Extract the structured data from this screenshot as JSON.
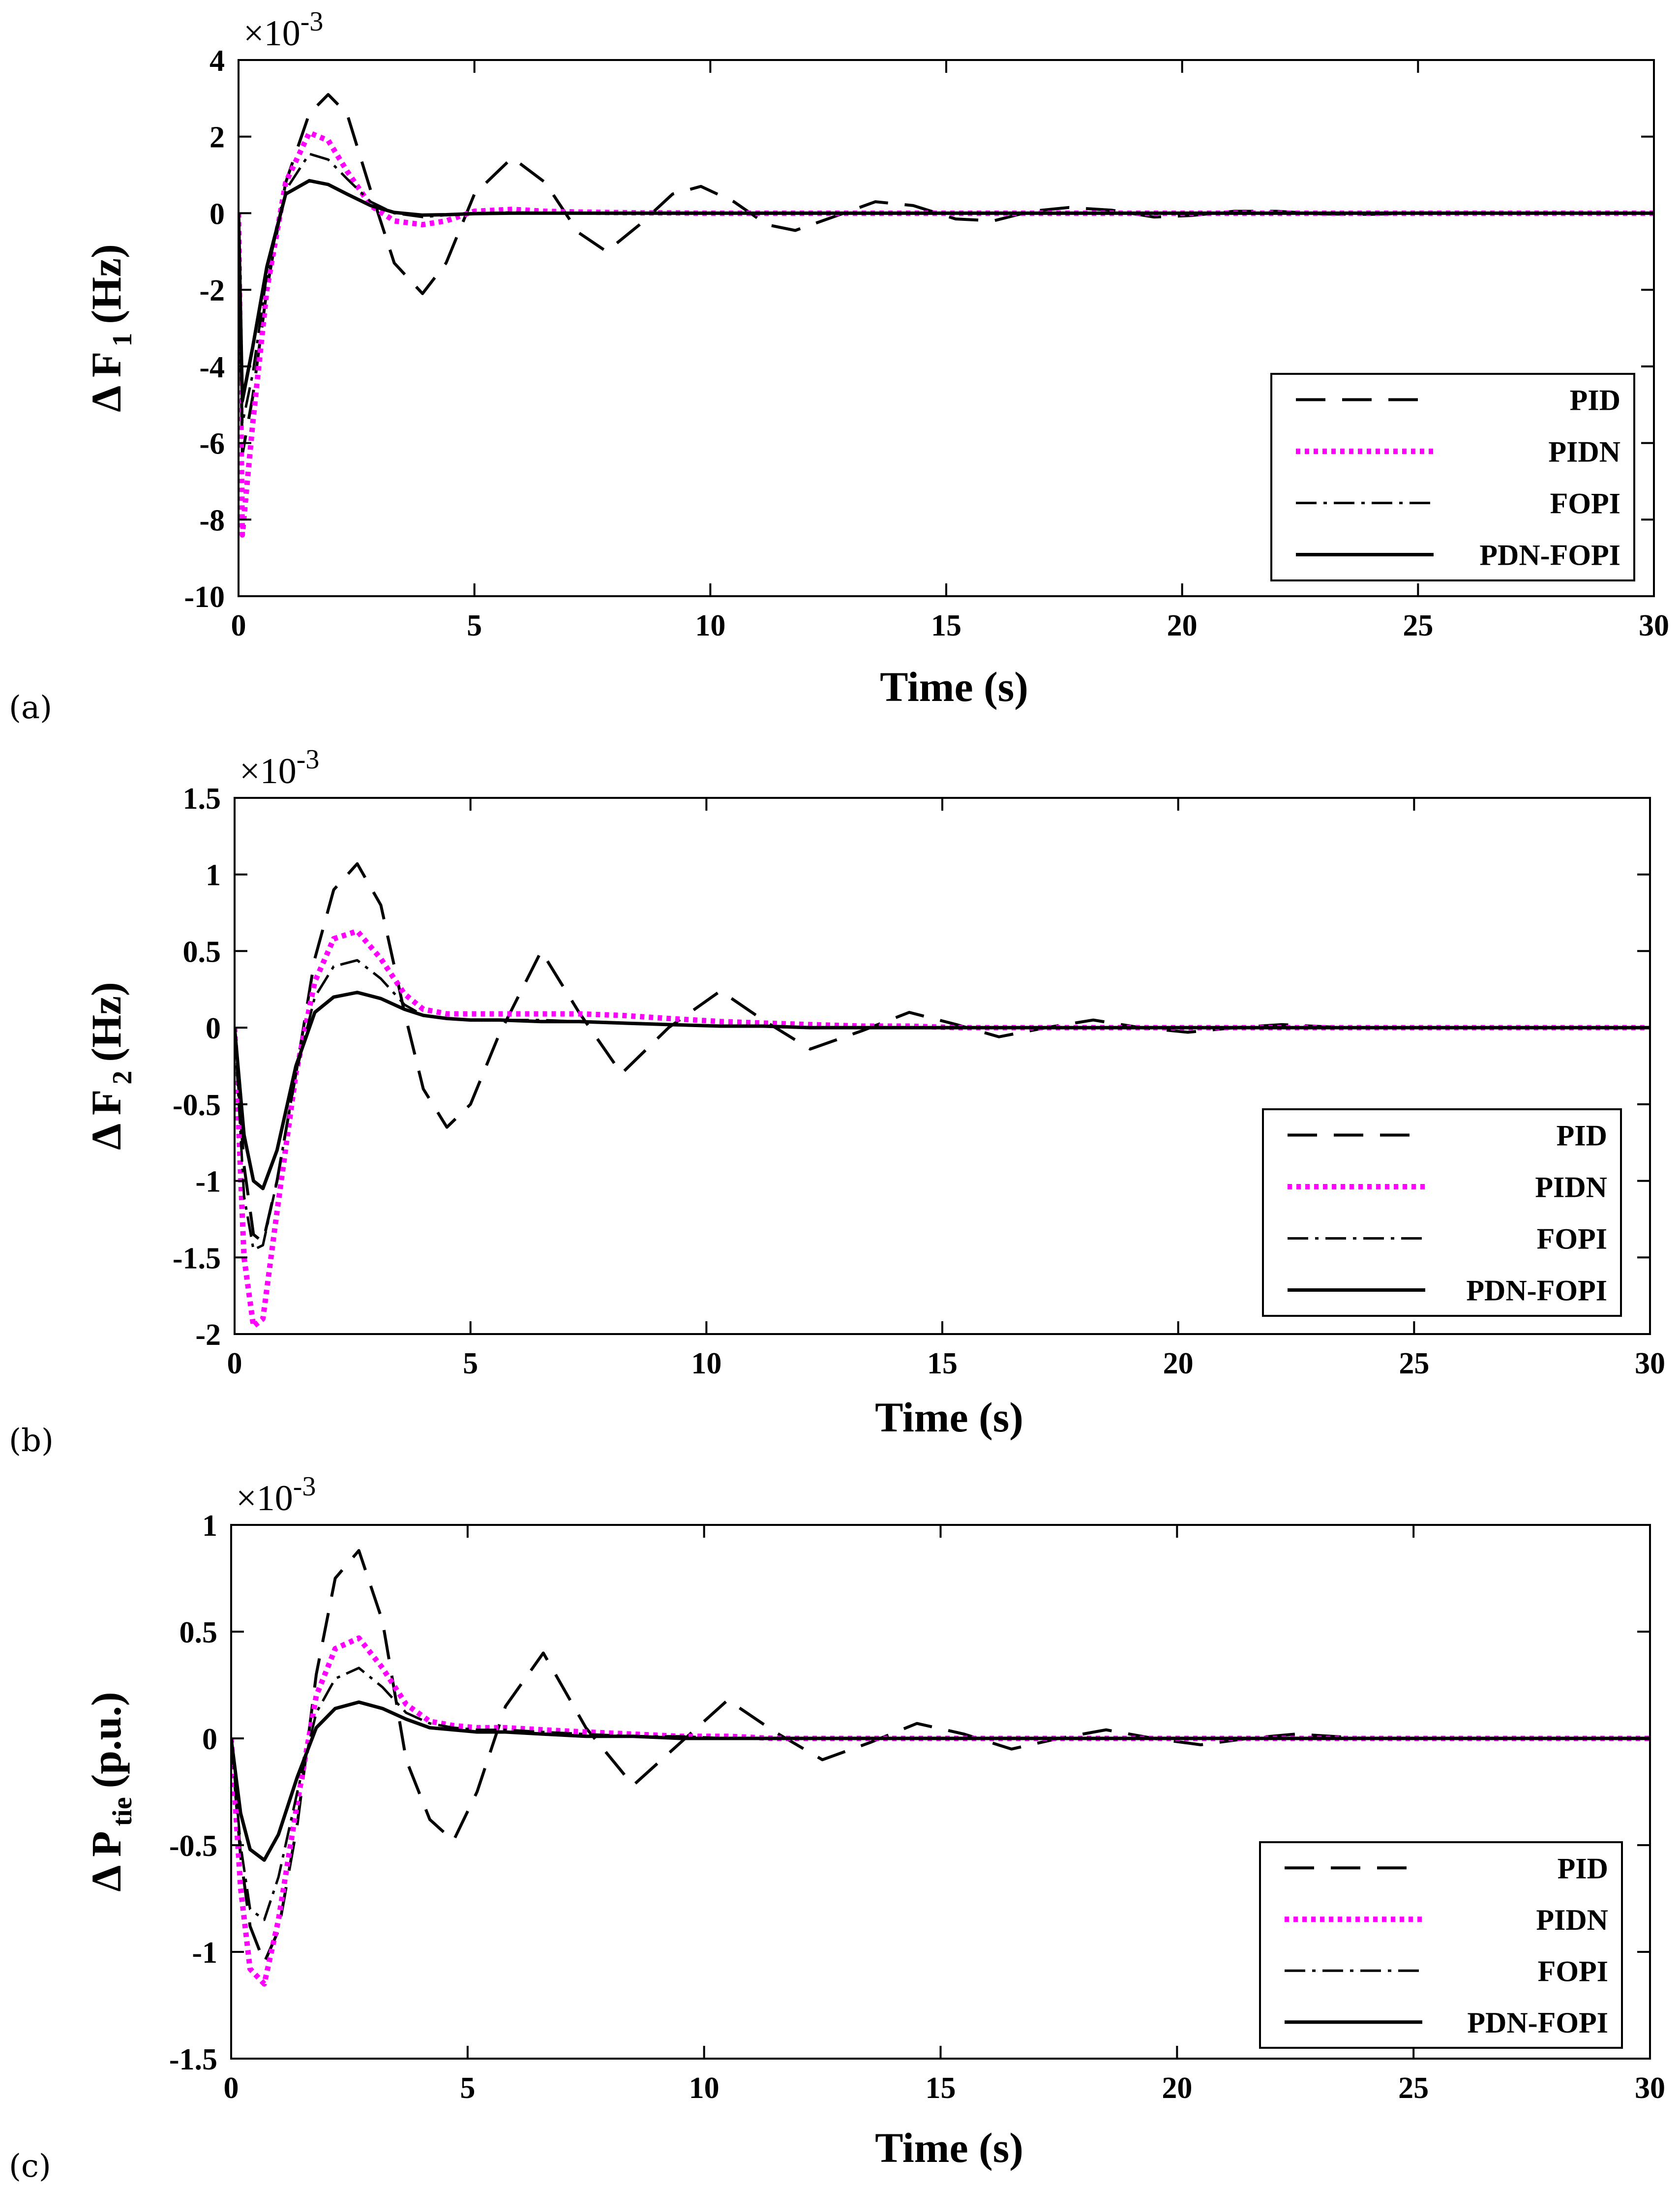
{
  "figure": {
    "series_names": [
      "PID",
      "PIDN",
      "FOPI",
      "PDN-FOPI"
    ],
    "series_colors": {
      "PID": "#000000",
      "PIDN": "#ff00ff",
      "FOPI": "#000000",
      "PDN-FOPI": "#000000"
    }
  },
  "chart_data": [
    {
      "panel_label": "(a)",
      "type": "line",
      "xlabel": "Time (s)",
      "ylabel_main": "Δ F",
      "ylabel_sub": "1",
      "ylabel_unit": "(Hz)",
      "exponent_prefix": "×10",
      "exponent_power": "-3",
      "xlim": [
        0,
        30
      ],
      "ylim": [
        -10,
        4
      ],
      "xticks": [
        "0",
        "5",
        "10",
        "15",
        "20",
        "25",
        "30"
      ],
      "yticks": [
        "4",
        "2",
        "0",
        "-2",
        "-4",
        "-6",
        "-8",
        "-10"
      ],
      "x": [
        0,
        0.08,
        0.3,
        0.6,
        1,
        1.5,
        1.9,
        2.3,
        2.8,
        3.3,
        3.9,
        4.4,
        5,
        5.8,
        6.5,
        7.2,
        7.8,
        8.5,
        9.2,
        9.8,
        10.5,
        11.2,
        11.8,
        12.6,
        13.5,
        14.3,
        15.2,
        16,
        16.8,
        17.6,
        18.5,
        19.4,
        20.2,
        21.1,
        22,
        23,
        24,
        25,
        26.5,
        28,
        30
      ],
      "series": [
        {
          "name": "PID",
          "values": [
            0,
            -6.3,
            -4.8,
            -2,
            0.8,
            2.6,
            3.1,
            2.6,
            0.6,
            -1.3,
            -2.1,
            -1.3,
            0.5,
            1.45,
            0.8,
            -0.5,
            -1.0,
            -0.3,
            0.5,
            0.7,
            0.3,
            -0.3,
            -0.45,
            -0.1,
            0.3,
            0.2,
            -0.15,
            -0.2,
            0.05,
            0.15,
            0.08,
            -0.1,
            -0.06,
            0.05,
            0.05,
            -0.02,
            -0.03,
            0.01,
            0.01,
            0,
            0
          ]
        },
        {
          "name": "PIDN",
          "values": [
            0,
            -8.4,
            -5.5,
            -2,
            0.8,
            2.1,
            1.9,
            1.1,
            0.2,
            -0.2,
            -0.3,
            -0.2,
            0.05,
            0.1,
            0.05,
            0.03,
            0.02,
            0.01,
            0.01,
            0,
            0,
            0,
            0,
            0,
            0,
            0,
            0,
            0,
            0,
            0,
            0,
            0,
            0,
            0,
            0,
            0,
            0,
            0,
            0,
            0,
            0
          ]
        },
        {
          "name": "FOPI",
          "values": [
            0,
            -5.5,
            -4.2,
            -1.6,
            0.6,
            1.55,
            1.4,
            0.9,
            0.3,
            0,
            -0.1,
            -0.05,
            0,
            0.02,
            0.01,
            0,
            0,
            0,
            0,
            0,
            0,
            0,
            0,
            0,
            0,
            0,
            0,
            0,
            0,
            0,
            0,
            0,
            0,
            0,
            0,
            0,
            0,
            0,
            0,
            0,
            0
          ]
        },
        {
          "name": "PDN-FOPI",
          "values": [
            0,
            -4.9,
            -3.5,
            -1.4,
            0.5,
            0.85,
            0.75,
            0.5,
            0.2,
            0.02,
            -0.05,
            -0.04,
            -0.01,
            0,
            0,
            0,
            0,
            0,
            0,
            0,
            0,
            0,
            0,
            0,
            0,
            0,
            0,
            0,
            0,
            0,
            0,
            0,
            0,
            0,
            0,
            0,
            0,
            0,
            0,
            0,
            0
          ]
        }
      ]
    },
    {
      "panel_label": "(b)",
      "type": "line",
      "xlabel": "Time (s)",
      "ylabel_main": "Δ F",
      "ylabel_sub": "2",
      "ylabel_unit": "(Hz)",
      "exponent_prefix": "×10",
      "exponent_power": "-3",
      "xlim": [
        0,
        30
      ],
      "ylim": [
        -2,
        1.5
      ],
      "xticks": [
        "0",
        "5",
        "10",
        "15",
        "20",
        "25",
        "30"
      ],
      "yticks": [
        "1.5",
        "1",
        "0.5",
        "0",
        "-0.5",
        "-1",
        "-1.5",
        "-2"
      ],
      "x": [
        0,
        0.2,
        0.4,
        0.6,
        0.9,
        1.3,
        1.7,
        2.1,
        2.6,
        3.1,
        3.6,
        4.0,
        4.5,
        5.0,
        5.6,
        6.5,
        7.3,
        8.2,
        9.2,
        10.3,
        11.2,
        12.2,
        13.3,
        14.3,
        15.3,
        16.2,
        17.2,
        18.2,
        19.2,
        20.2,
        21.2,
        22.2,
        23.5,
        25,
        27,
        30
      ],
      "series": [
        {
          "name": "PID",
          "values": [
            0,
            -0.9,
            -1.35,
            -1.4,
            -1.0,
            -0.3,
            0.45,
            0.9,
            1.07,
            0.8,
            0.1,
            -0.4,
            -0.65,
            -0.5,
            -0.05,
            0.5,
            0.1,
            -0.3,
            0.0,
            0.24,
            0.05,
            -0.14,
            -0.02,
            0.1,
            0.02,
            -0.06,
            0.0,
            0.05,
            0.0,
            -0.03,
            0.0,
            0.02,
            0,
            0,
            0,
            0
          ]
        },
        {
          "name": "PIDN",
          "values": [
            0,
            -1.5,
            -1.95,
            -1.9,
            -1.2,
            -0.3,
            0.3,
            0.58,
            0.63,
            0.45,
            0.22,
            0.12,
            0.09,
            0.09,
            0.09,
            0.09,
            0.09,
            0.08,
            0.06,
            0.04,
            0.03,
            0.02,
            0.01,
            0.01,
            0,
            0,
            0,
            0,
            0,
            0,
            0,
            0,
            0,
            0,
            0,
            0
          ]
        },
        {
          "name": "FOPI",
          "values": [
            0,
            -1.1,
            -1.45,
            -1.42,
            -1.0,
            -0.3,
            0.2,
            0.4,
            0.44,
            0.32,
            0.15,
            0.08,
            0.06,
            0.05,
            0.05,
            0.05,
            0.04,
            0.03,
            0.02,
            0.01,
            0.01,
            0,
            0,
            0,
            0,
            0,
            0,
            0,
            0,
            0,
            0,
            0,
            0,
            0,
            0,
            0
          ]
        },
        {
          "name": "PDN-FOPI",
          "values": [
            0,
            -0.7,
            -1.0,
            -1.05,
            -0.8,
            -0.25,
            0.1,
            0.2,
            0.23,
            0.19,
            0.12,
            0.08,
            0.06,
            0.05,
            0.05,
            0.04,
            0.04,
            0.03,
            0.02,
            0.01,
            0.01,
            0,
            0,
            0,
            0,
            0,
            0,
            0,
            0,
            0,
            0,
            0,
            0,
            0,
            0,
            0
          ]
        }
      ]
    },
    {
      "panel_label": "(c)",
      "type": "line",
      "xlabel": "Time (s)",
      "ylabel_main": "Δ P",
      "ylabel_sub": "tie",
      "ylabel_unit": "(p.u.)",
      "exponent_prefix": "×10",
      "exponent_power": "-3",
      "xlim": [
        0,
        30
      ],
      "ylim": [
        -1.5,
        1
      ],
      "xticks": [
        "0",
        "5",
        "10",
        "15",
        "20",
        "25",
        "30"
      ],
      "yticks": [
        "1",
        "0.5",
        "0",
        "-0.5",
        "-1",
        "-1.5"
      ],
      "x": [
        0,
        0.2,
        0.4,
        0.7,
        1.0,
        1.4,
        1.8,
        2.2,
        2.7,
        3.2,
        3.7,
        4.2,
        4.7,
        5.2,
        5.8,
        6.6,
        7.5,
        8.5,
        9.5,
        10.5,
        11.5,
        12.5,
        13.5,
        14.5,
        15.5,
        16.5,
        17.5,
        18.5,
        19.5,
        20.5,
        21.5,
        22.5,
        24,
        26,
        28,
        30
      ],
      "series": [
        {
          "name": "PID",
          "values": [
            0,
            -0.55,
            -0.88,
            -1.05,
            -0.9,
            -0.4,
            0.3,
            0.75,
            0.88,
            0.55,
            -0.1,
            -0.38,
            -0.48,
            -0.25,
            0.15,
            0.4,
            0.05,
            -0.22,
            -0.02,
            0.18,
            0.03,
            -0.1,
            -0.02,
            0.07,
            0.02,
            -0.05,
            0.0,
            0.04,
            0.0,
            -0.03,
            0.0,
            0.02,
            0,
            0,
            0,
            0
          ]
        },
        {
          "name": "PIDN",
          "values": [
            0,
            -0.7,
            -1.08,
            -1.15,
            -0.85,
            -0.3,
            0.2,
            0.42,
            0.47,
            0.33,
            0.16,
            0.08,
            0.06,
            0.05,
            0.05,
            0.04,
            0.03,
            0.02,
            0.01,
            0.01,
            0,
            0,
            0,
            0,
            0,
            0,
            0,
            0,
            0,
            0,
            0,
            0,
            0,
            0,
            0,
            0
          ]
        },
        {
          "name": "FOPI",
          "values": [
            0,
            -0.5,
            -0.8,
            -0.85,
            -0.65,
            -0.25,
            0.12,
            0.28,
            0.33,
            0.24,
            0.12,
            0.07,
            0.05,
            0.04,
            0.04,
            0.03,
            0.02,
            0.01,
            0.01,
            0,
            0,
            0,
            0,
            0,
            0,
            0,
            0,
            0,
            0,
            0,
            0,
            0,
            0,
            0,
            0,
            0
          ]
        },
        {
          "name": "PDN-FOPI",
          "values": [
            0,
            -0.35,
            -0.52,
            -0.57,
            -0.45,
            -0.18,
            0.05,
            0.14,
            0.17,
            0.14,
            0.09,
            0.05,
            0.04,
            0.03,
            0.03,
            0.02,
            0.01,
            0.01,
            0,
            0,
            0,
            0,
            0,
            0,
            0,
            0,
            0,
            0,
            0,
            0,
            0,
            0,
            0,
            0,
            0,
            0
          ]
        }
      ]
    }
  ]
}
